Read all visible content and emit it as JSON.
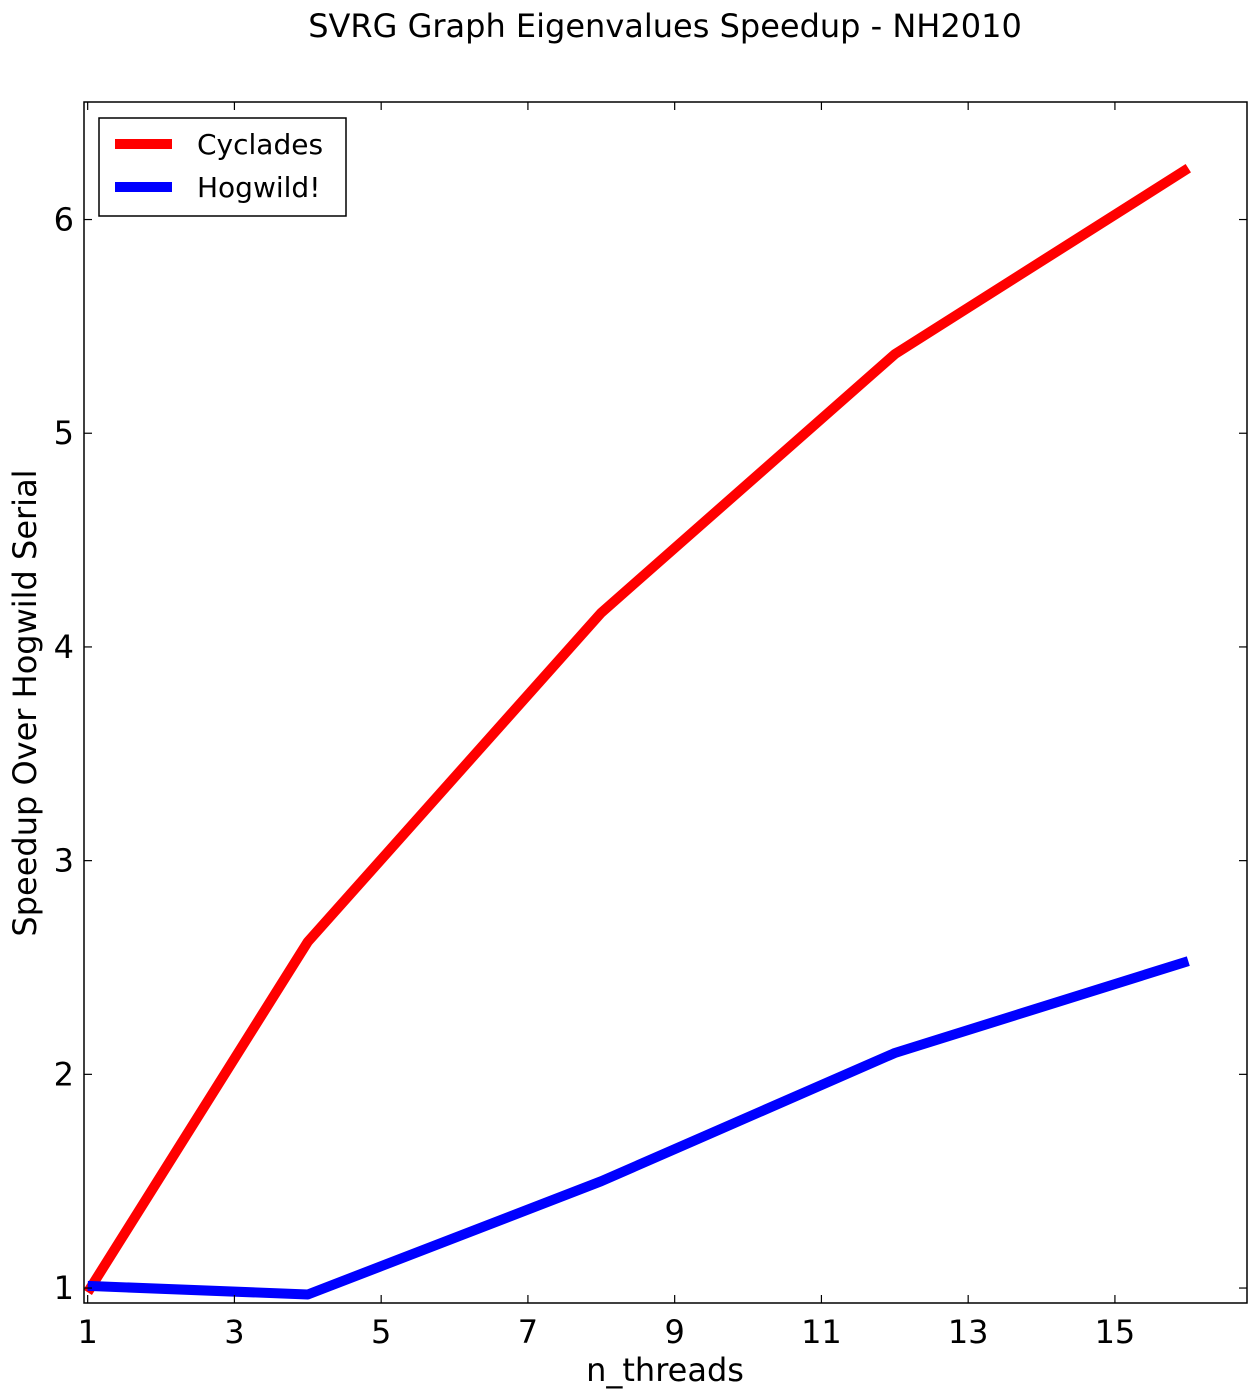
{
  "chart_data": {
    "type": "line",
    "title": "SVRG Graph Eigenvalues Speedup - NH2010",
    "xlabel": "n_threads",
    "ylabel": "Speedup Over Hogwild Serial",
    "xlim": [
      0.95,
      16.8
    ],
    "ylim": [
      0.93,
      6.55
    ],
    "xticks": [
      1,
      3,
      5,
      7,
      9,
      11,
      13,
      15
    ],
    "yticks": [
      1,
      2,
      3,
      4,
      5,
      6
    ],
    "grid": false,
    "legend_position": "top-left",
    "x": [
      1,
      4,
      8,
      12,
      16
    ],
    "series": [
      {
        "name": "Cyclades",
        "color": "#ff0000",
        "values": [
          0.98,
          2.62,
          4.16,
          5.37,
          6.24
        ]
      },
      {
        "name": "Hogwild!",
        "color": "#0000ff",
        "values": [
          1.01,
          0.97,
          1.5,
          2.1,
          2.53
        ]
      }
    ]
  }
}
